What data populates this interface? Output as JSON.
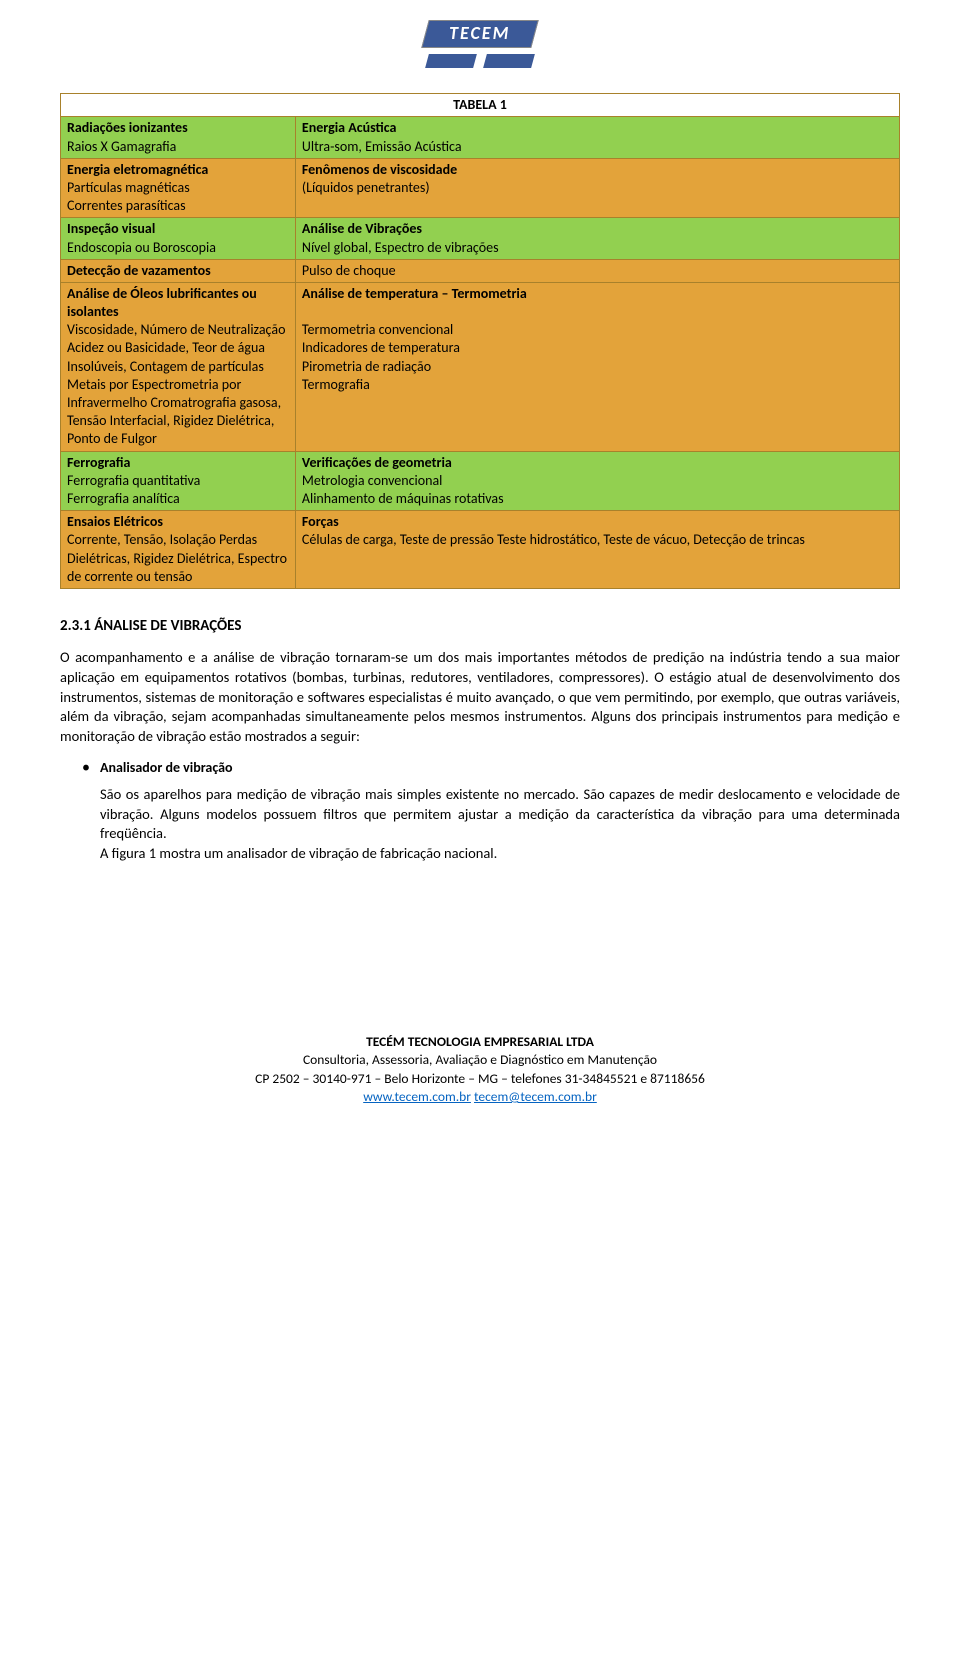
{
  "logo": {
    "text": "TECEM"
  },
  "table": {
    "title": "TABELA 1",
    "border_color": "#a8812b",
    "green": "#92d050",
    "orange": "#e3a33a",
    "rows": [
      {
        "l_bold": "Radiações ionizantes",
        "l_plain": "\nRaios X Gamagrafia",
        "r_bold": "Energia Acústica",
        "r_plain": "\nUltra-som, Emissão Acústica",
        "cls": "green"
      },
      {
        "l_bold": "Energia eletromagnética",
        "l_plain": "\nPartículas magnéticas\nCorrentes parasíticas",
        "r_bold": "Fenômenos de viscosidade",
        "r_plain": "\n(Líquidos penetrantes)",
        "cls": "orange"
      },
      {
        "l_bold": "Inspeção visual",
        "l_plain": "\nEndoscopia ou Boroscopia",
        "r_bold": "Análise de Vibrações",
        "r_plain": "\nNível global, Espectro de vibrações",
        "cls": "green"
      },
      {
        "l_bold": "Detecção de vazamentos",
        "l_plain": "",
        "r_bold": "",
        "r_plain": "Pulso de choque",
        "cls": "orange"
      },
      {
        "l_bold": "Análise de Óleos lubrificantes ou isolantes",
        "l_plain": "\nViscosidade, Número de Neutralização Acidez ou Basicidade, Teor de água Insolúveis, Contagem de partículas Metais por Espectrometria por Infravermelho Cromatrografia gasosa, Tensão Interfacial, Rigidez Dielétrica, Ponto de Fulgor",
        "r_bold": "Análise de temperatura – Termometria",
        "r_plain": "\n\nTermometria convencional\nIndicadores de temperatura\nPirometria de radiação\nTermografia",
        "cls": "orange"
      },
      {
        "l_bold": "Ferrografia",
        "l_plain": "\nFerrografia quantitativa\nFerrografia analítica",
        "r_bold": "Verificações de geometria",
        "r_plain": "\nMetrologia convencional\nAlinhamento de máquinas rotativas",
        "cls": "green"
      },
      {
        "l_bold": "Ensaios Elétricos",
        "l_plain": "\nCorrente, Tensão, Isolação Perdas Dielétricas, Rigidez Dielétrica, Espectro de corrente ou tensão",
        "r_bold": "Forças",
        "r_plain": "\nCélulas de carga, Teste de pressão Teste hidrostático, Teste de vácuo, Detecção de trincas",
        "cls": "orange"
      }
    ]
  },
  "section": {
    "heading": "2.3.1 ÁNALISE DE VIBRAÇÕES",
    "para": "O acompanhamento e a análise de vibração tornaram-se um dos mais importantes métodos de predição na indústria tendo a sua maior aplicação em  equipamentos rotativos  (bombas, turbinas, redutores, ventiladores, compressores). O estágio atual de desenvolvimento dos instrumentos, sistemas de monitoração e softwares especialistas é muito avançado, o que vem permitindo, por exemplo, que outras variáveis, além da vibração, sejam acompanhadas simultaneamente pelos mesmos instrumentos. Alguns dos principais instrumentos para medição e monitoração de vibração estão mostrados a seguir:",
    "bullet_title": "Analisador de vibração",
    "bullet_body1": "São os aparelhos para medição de vibração mais simples existente no mercado. São capazes de medir deslocamento e velocidade de vibração. Alguns modelos possuem filtros que permitem ajustar a medição da característica da vibração para uma determinada freqüência.",
    "bullet_body2": "A figura 1 mostra um analisador de vibração de fabricação nacional."
  },
  "footer": {
    "line1": "TECÉM TECNOLOGIA EMPRESARIAL LTDA",
    "line2": "Consultoria, Assessoria, Avaliação e Diagnóstico em Manutenção",
    "line3": "CP 2502 – 30140-971 – Belo Horizonte – MG – telefones 31-34845521 e 87118656",
    "link1": "www.tecem.com.br",
    "sep": "      ",
    "link2": "tecem@tecem.com.br"
  }
}
